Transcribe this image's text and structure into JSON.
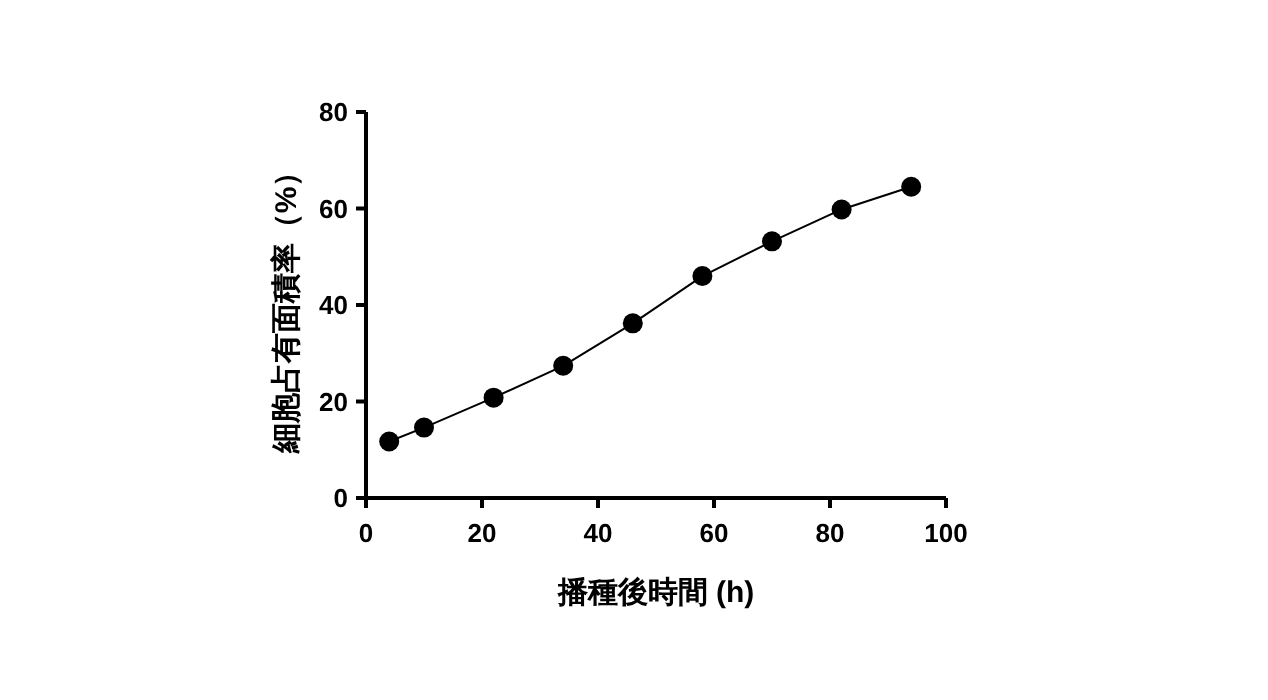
{
  "chart_data": {
    "type": "line",
    "xlabel": "播種後時間 (h)",
    "ylabel": "細胞占有面積率（%）",
    "x": [
      4,
      10,
      22,
      34,
      46,
      58,
      70,
      82,
      94
    ],
    "series": [
      {
        "color": "#000000",
        "values": [
          11.7,
          14.6,
          20.8,
          27.4,
          36.2,
          46.0,
          53.2,
          59.8,
          64.5
        ]
      }
    ],
    "xlim": [
      0,
      100
    ],
    "ylim": [
      0,
      80
    ],
    "xticks": [
      0,
      20,
      40,
      60,
      80,
      100
    ],
    "yticks": [
      0,
      20,
      40,
      60,
      80
    ],
    "marker": "circle",
    "line_style": "solid"
  }
}
